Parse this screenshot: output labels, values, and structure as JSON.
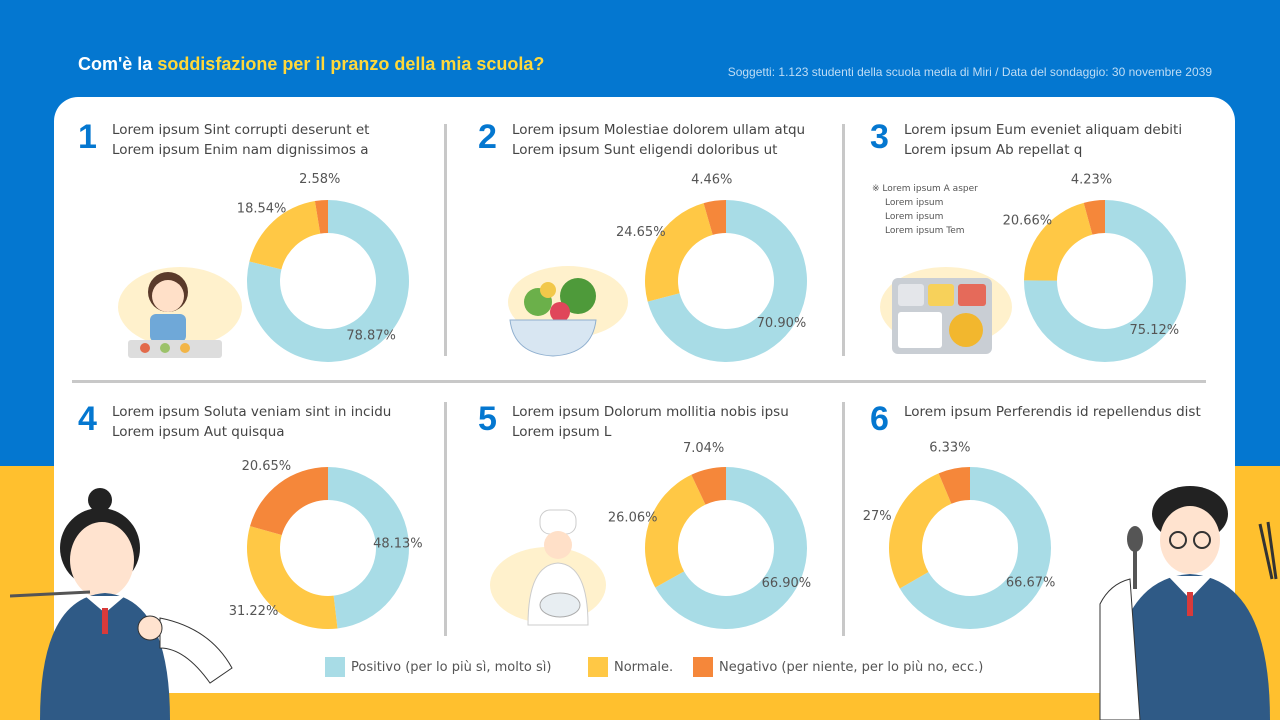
{
  "header": {
    "title_prefix": "Com'è la ",
    "title_highlight": "soddisfazione per il pranzo della mia scuola?",
    "subtitle": "Soggetti: 1.123 studenti della scuola media di Miri / Data del sondaggio: 30 novembre 2039"
  },
  "colors": {
    "positive": "#A8DCE6",
    "normal": "#FFC845",
    "negative": "#F5873A",
    "background": "#0477D0",
    "band": "#FFC02E"
  },
  "panels": [
    {
      "number": "1",
      "line1": "Lorem ipsum Sint corrupti deserunt et",
      "line2": "Lorem ipsum Enim nam dignissimos a",
      "labels": [
        "78.87%",
        "18.54%",
        "2.58%"
      ]
    },
    {
      "number": "2",
      "line1": "Lorem ipsum Molestiae dolorem ullam atqu",
      "line2": "Lorem ipsum Sunt eligendi doloribus ut",
      "labels": [
        "70.90%",
        "24.65%",
        "4.46%"
      ]
    },
    {
      "number": "3",
      "line1": "Lorem ipsum Eum eveniet aliquam debiti",
      "line2": "Lorem ipsum Ab repellat q",
      "labels": [
        "75.12%",
        "20.66%",
        "4.23%"
      ],
      "note": [
        "※ Lorem ipsum A asper",
        "Lorem ipsum",
        "Lorem ipsum",
        "Lorem ipsum Tem"
      ]
    },
    {
      "number": "4",
      "line1": "Lorem ipsum Soluta veniam sint in incidu",
      "line2": "Lorem ipsum Aut quisqua",
      "labels": [
        "48.13%",
        "31.22%",
        "20.65%"
      ]
    },
    {
      "number": "5",
      "line1": "Lorem ipsum Dolorum mollitia nobis ipsu",
      "line2": "Lorem ipsum L",
      "labels": [
        "66.90%",
        "26.06%",
        "7.04%"
      ]
    },
    {
      "number": "6",
      "line1": "Lorem ipsum Perferendis id repellendus dist",
      "line2": "",
      "labels": [
        "66.67%",
        "27%",
        "6.33%"
      ]
    }
  ],
  "legend": {
    "positive": "Positivo (per lo più sì, molto sì)",
    "normal": "Normale.",
    "negative": "Negativo (per niente, per lo più no, ecc.)"
  },
  "chart_data": [
    {
      "type": "pie",
      "donut": true,
      "categories": [
        "Positivo",
        "Normale",
        "Negativo"
      ],
      "values": [
        78.87,
        18.54,
        2.58
      ]
    },
    {
      "type": "pie",
      "donut": true,
      "categories": [
        "Positivo",
        "Normale",
        "Negativo"
      ],
      "values": [
        70.9,
        24.65,
        4.46
      ]
    },
    {
      "type": "pie",
      "donut": true,
      "categories": [
        "Positivo",
        "Normale",
        "Negativo"
      ],
      "values": [
        75.12,
        20.66,
        4.23
      ]
    },
    {
      "type": "pie",
      "donut": true,
      "categories": [
        "Positivo",
        "Normale",
        "Negativo"
      ],
      "values": [
        48.13,
        31.22,
        20.65
      ]
    },
    {
      "type": "pie",
      "donut": true,
      "categories": [
        "Positivo",
        "Normale",
        "Negativo"
      ],
      "values": [
        66.9,
        26.06,
        7.04
      ]
    },
    {
      "type": "pie",
      "donut": true,
      "categories": [
        "Positivo",
        "Normale",
        "Negativo"
      ],
      "values": [
        66.67,
        27,
        6.33
      ]
    }
  ]
}
